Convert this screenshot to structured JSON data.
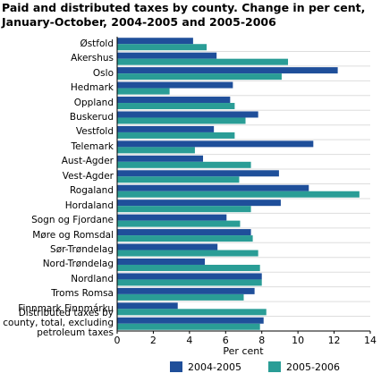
{
  "chart_data": {
    "type": "barh",
    "title": "Paid and distributed taxes by county. Change in per cent, January-October, 2004-2005 and 2005-2006",
    "x_label": "Per cent",
    "categories": [
      "Østfold",
      "Akershus",
      "Oslo",
      "Hedmark",
      "Oppland",
      "Buskerud",
      "Vestfold",
      "Telemark",
      "Aust-Agder",
      "Vest-Agder",
      "Rogaland",
      "Hordaland",
      "Sogn og Fjordane",
      "Møre og Romsdal",
      "Sør-Trøndelag",
      "Nord-Trøndelag",
      "Nordland",
      "Troms Romsa",
      "Finnmark Finnmárku",
      "Distributed taxes by county, total, excluding petroleum taxes"
    ],
    "series": [
      {
        "name": "2004-2005",
        "color": "#1f4f9a",
        "values": [
          4.2,
          5.5,
          12.2,
          6.4,
          6.25,
          7.8,
          5.35,
          10.85,
          4.75,
          8.95,
          10.6,
          9.05,
          6.05,
          7.4,
          5.55,
          4.85,
          8.0,
          7.6,
          3.35,
          8.1
        ]
      },
      {
        "name": "2005-2006",
        "color": "#2a9d96",
        "values": [
          4.95,
          9.45,
          9.1,
          2.9,
          6.5,
          7.1,
          6.5,
          4.3,
          7.4,
          6.75,
          13.4,
          7.4,
          6.8,
          7.5,
          7.8,
          7.9,
          8.0,
          7.0,
          8.25,
          7.9
        ]
      }
    ],
    "xlim": [
      0,
      14
    ],
    "xticks": [
      0,
      2,
      4,
      6,
      8,
      10,
      12,
      14
    ],
    "grid": false,
    "legend": "bottom"
  }
}
